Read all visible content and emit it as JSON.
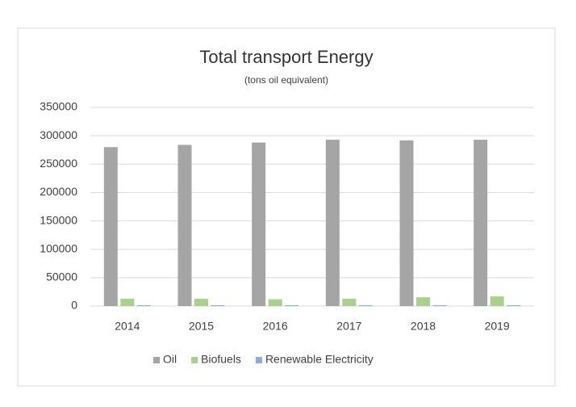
{
  "chart_data": {
    "type": "bar",
    "title": "Total transport Energy",
    "subtitle": "(tons oil equivalent)",
    "categories": [
      "2014",
      "2015",
      "2016",
      "2017",
      "2018",
      "2019"
    ],
    "series": [
      {
        "name": "Oil",
        "color": "#a5a5a5",
        "values": [
          280000,
          284000,
          288000,
          293000,
          292000,
          293000
        ]
      },
      {
        "name": "Biofuels",
        "color": "#a9d18e",
        "values": [
          13000,
          13000,
          12000,
          13000,
          15500,
          17000
        ]
      },
      {
        "name": "Renewable Electricity",
        "color": "#8faadc",
        "values": [
          1500,
          1500,
          1500,
          1500,
          1500,
          1500
        ]
      }
    ],
    "ylim": [
      0,
      350000
    ],
    "yticks": [
      0,
      50000,
      100000,
      150000,
      200000,
      250000,
      300000,
      350000
    ],
    "grid": true,
    "legend": "bottom"
  }
}
